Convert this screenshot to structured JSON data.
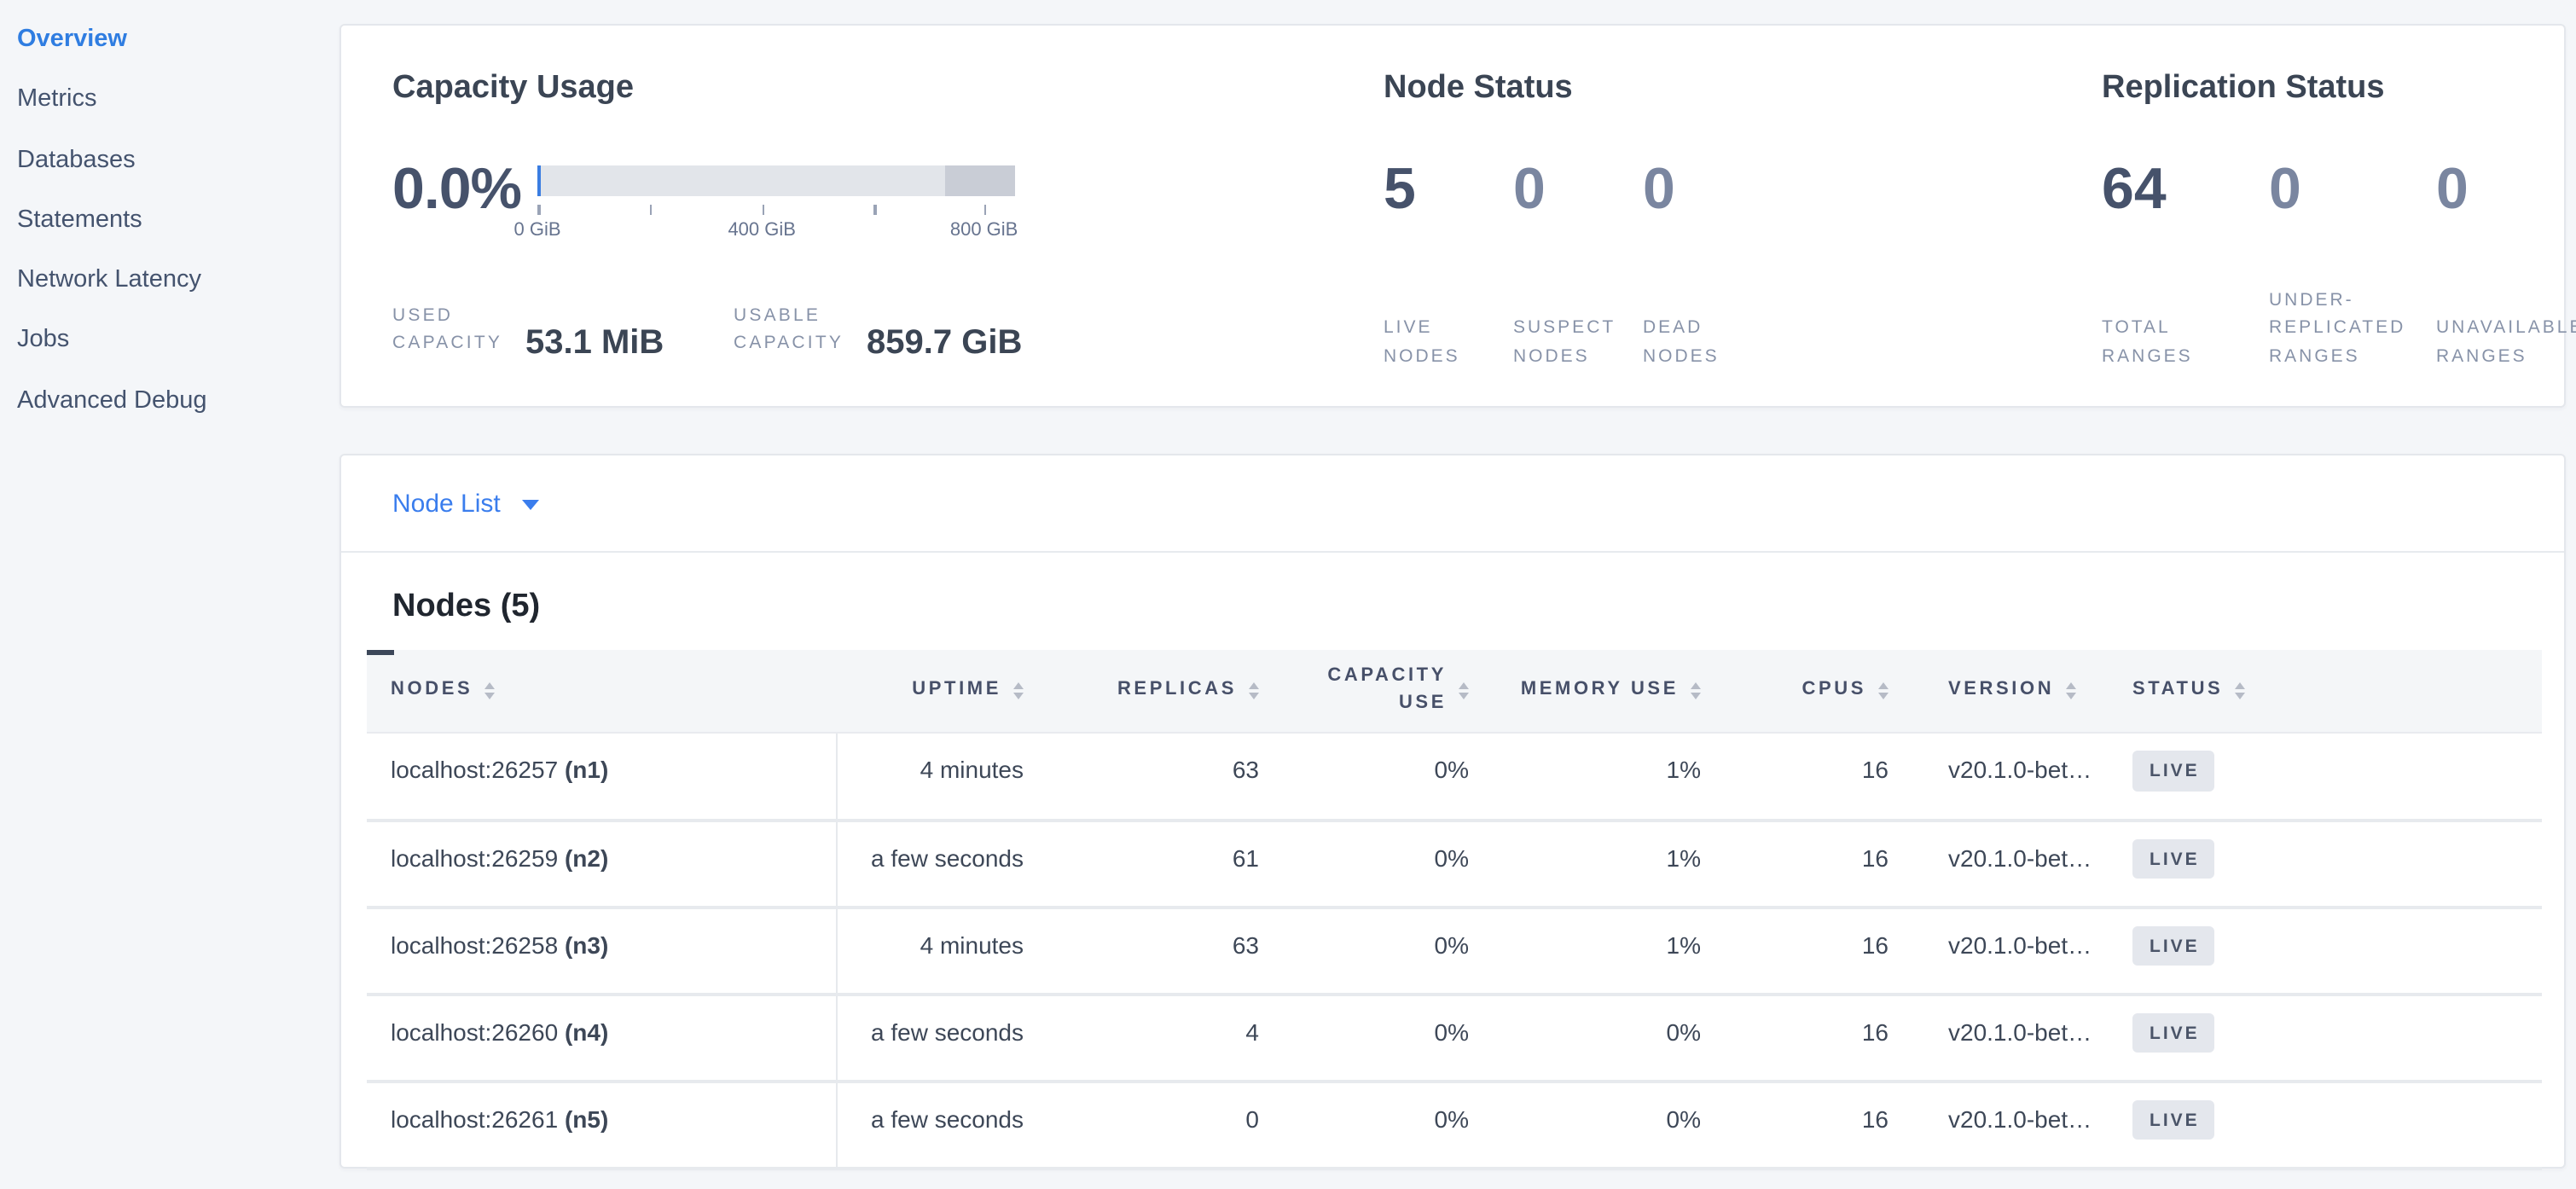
{
  "colors": {
    "accent_blue": "#3a7ded",
    "page_bg": "#f4f6f9",
    "bar_used": "#3a7de1",
    "bar_usable": "#e2e5ea",
    "bar_reserved": "#c9cdd6",
    "badge_bg": "#e4e7ed",
    "badge_text": "#4a5468",
    "emphasis_number": "#46526b",
    "muted_number": "#7a86a0"
  },
  "sidebar": {
    "items": [
      {
        "label": "Overview",
        "active": true
      },
      {
        "label": "Metrics",
        "active": false
      },
      {
        "label": "Databases",
        "active": false
      },
      {
        "label": "Statements",
        "active": false
      },
      {
        "label": "Network Latency",
        "active": false
      },
      {
        "label": "Jobs",
        "active": false
      },
      {
        "label": "Advanced Debug",
        "active": false
      }
    ]
  },
  "capacity": {
    "title": "Capacity Usage",
    "percent": "0.0%",
    "bar_segments": [
      {
        "name": "used",
        "pct": 0.7,
        "color": "#3a7de1"
      },
      {
        "name": "usable",
        "pct": 84.8,
        "color": "#e2e5ea"
      },
      {
        "name": "reserved",
        "pct": 14.5,
        "color": "#c9cdd6"
      }
    ],
    "axis_ticks": [
      {
        "label": "0 GiB",
        "pct": 0
      },
      {
        "label": "",
        "pct": 23.5
      },
      {
        "label": "400 GiB",
        "pct": 47
      },
      {
        "label": "",
        "pct": 70.5
      },
      {
        "label": "800 GiB",
        "pct": 93.5
      }
    ],
    "stats": [
      {
        "label": "USED CAPACITY",
        "value": "53.1 MiB"
      },
      {
        "label": "USABLE CAPACITY",
        "value": "859.7 GiB"
      }
    ]
  },
  "node_status": {
    "title": "Node Status",
    "stats": [
      {
        "value": "5",
        "label": "LIVE NODES",
        "emphasis": true
      },
      {
        "value": "0",
        "label": "SUSPECT NODES",
        "emphasis": false
      },
      {
        "value": "0",
        "label": "DEAD NODES",
        "emphasis": false
      }
    ]
  },
  "replication_status": {
    "title": "Replication Status",
    "stats": [
      {
        "value": "64",
        "label": "TOTAL RANGES",
        "emphasis": true
      },
      {
        "value": "0",
        "label": "UNDER-REPLICATED RANGES",
        "emphasis": false
      },
      {
        "value": "0",
        "label": "UNAVAILABLE RANGES",
        "emphasis": false
      }
    ]
  },
  "node_list": {
    "view_label": "Node List",
    "heading": "Nodes (5)",
    "columns": [
      {
        "label": "NODES",
        "align": "left",
        "sortable": true,
        "sorted": true
      },
      {
        "label": "UPTIME",
        "align": "right",
        "sortable": true,
        "sorted": false
      },
      {
        "label": "REPLICAS",
        "align": "right",
        "sortable": true,
        "sorted": false
      },
      {
        "label": "CAPACITY USE",
        "align": "right",
        "sortable": true,
        "sorted": false
      },
      {
        "label": "MEMORY USE",
        "align": "right",
        "sortable": true,
        "sorted": false
      },
      {
        "label": "CPUS",
        "align": "right",
        "sortable": true,
        "sorted": false
      },
      {
        "label": "VERSION",
        "align": "left",
        "sortable": true,
        "sorted": false
      },
      {
        "label": "STATUS",
        "align": "left",
        "sortable": true,
        "sorted": false
      }
    ],
    "rows": [
      {
        "address": "localhost:26257",
        "node_id": "(n1)",
        "uptime": "4 minutes",
        "replicas": "63",
        "capacity_use": "0%",
        "memory_use": "1%",
        "cpus": "16",
        "version": "v20.1.0-bet…",
        "status": "LIVE"
      },
      {
        "address": "localhost:26259",
        "node_id": "(n2)",
        "uptime": "a few seconds",
        "replicas": "61",
        "capacity_use": "0%",
        "memory_use": "1%",
        "cpus": "16",
        "version": "v20.1.0-bet…",
        "status": "LIVE"
      },
      {
        "address": "localhost:26258",
        "node_id": "(n3)",
        "uptime": "4 minutes",
        "replicas": "63",
        "capacity_use": "0%",
        "memory_use": "1%",
        "cpus": "16",
        "version": "v20.1.0-bet…",
        "status": "LIVE"
      },
      {
        "address": "localhost:26260",
        "node_id": "(n4)",
        "uptime": "a few seconds",
        "replicas": "4",
        "capacity_use": "0%",
        "memory_use": "0%",
        "cpus": "16",
        "version": "v20.1.0-bet…",
        "status": "LIVE"
      },
      {
        "address": "localhost:26261",
        "node_id": "(n5)",
        "uptime": "a few seconds",
        "replicas": "0",
        "capacity_use": "0%",
        "memory_use": "0%",
        "cpus": "16",
        "version": "v20.1.0-bet…",
        "status": "LIVE"
      }
    ]
  }
}
